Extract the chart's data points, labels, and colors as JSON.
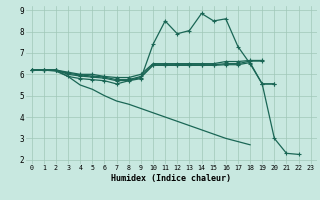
{
  "bg_color": "#c8e8e0",
  "grid_color": "#a0c8b8",
  "line_color": "#1a6655",
  "xlabel": "Humidex (Indice chaleur)",
  "xlim": [
    -0.5,
    23.5
  ],
  "ylim": [
    1.8,
    9.2
  ],
  "xticks": [
    0,
    1,
    2,
    3,
    4,
    5,
    6,
    7,
    8,
    9,
    10,
    11,
    12,
    13,
    14,
    15,
    16,
    17,
    18,
    19,
    20,
    21,
    22,
    23
  ],
  "yticks": [
    2,
    3,
    4,
    5,
    6,
    7,
    8,
    9
  ],
  "line1_x": [
    0,
    1,
    2,
    3,
    4,
    5,
    6,
    7,
    8,
    9,
    10,
    11,
    12,
    13,
    14,
    15,
    16,
    17,
    18,
    19
  ],
  "line1_y": [
    6.2,
    6.2,
    6.2,
    6.1,
    6.0,
    6.0,
    5.9,
    5.85,
    5.85,
    6.0,
    6.5,
    6.5,
    6.5,
    6.5,
    6.5,
    6.5,
    6.6,
    6.6,
    6.65,
    6.65
  ],
  "line2_x": [
    0,
    1,
    2,
    3,
    4,
    5,
    6,
    7,
    8,
    9,
    10,
    11,
    12,
    13,
    14,
    15,
    16,
    17,
    18,
    19
  ],
  "line2_y": [
    6.2,
    6.2,
    6.2,
    6.05,
    5.97,
    5.92,
    5.87,
    5.75,
    5.75,
    5.9,
    6.45,
    6.45,
    6.45,
    6.45,
    6.45,
    6.45,
    6.5,
    6.5,
    6.62,
    6.62
  ],
  "line3_x": [
    0,
    1,
    2,
    3,
    4,
    5,
    6,
    7,
    8,
    9,
    10,
    11,
    12,
    13,
    14,
    15,
    16,
    17,
    18,
    19,
    20
  ],
  "line3_y": [
    6.2,
    6.2,
    6.2,
    6.0,
    5.92,
    5.87,
    5.82,
    5.7,
    5.72,
    5.85,
    6.42,
    6.42,
    6.42,
    6.42,
    6.42,
    6.42,
    6.45,
    6.45,
    6.55,
    5.55,
    5.55
  ],
  "line4_x": [
    0,
    1,
    2,
    3,
    4,
    5,
    6,
    7,
    8,
    9,
    10,
    11,
    12,
    13,
    14,
    15,
    16,
    17,
    18,
    19,
    20
  ],
  "line4_y": [
    6.2,
    6.2,
    6.2,
    5.9,
    5.8,
    5.75,
    5.7,
    5.55,
    5.7,
    5.8,
    7.4,
    8.5,
    7.9,
    8.05,
    8.85,
    8.5,
    8.6,
    7.3,
    6.5,
    5.55,
    5.55
  ],
  "line5_x": [
    0,
    1,
    2,
    3,
    4,
    5,
    6,
    7,
    8,
    9,
    10,
    11,
    12,
    13,
    14,
    15,
    16,
    17,
    18,
    19,
    20,
    21,
    22
  ],
  "line5_y": [
    6.2,
    6.2,
    6.15,
    5.9,
    5.5,
    5.3,
    5.0,
    4.75,
    4.6,
    4.4,
    4.2,
    4.0,
    3.8,
    3.6,
    3.4,
    3.2,
    3.0,
    2.85,
    2.7,
    5.55,
    3.0,
    2.3,
    2.25
  ],
  "line5_nomarker_end": 18,
  "line5_marker_start": 19
}
